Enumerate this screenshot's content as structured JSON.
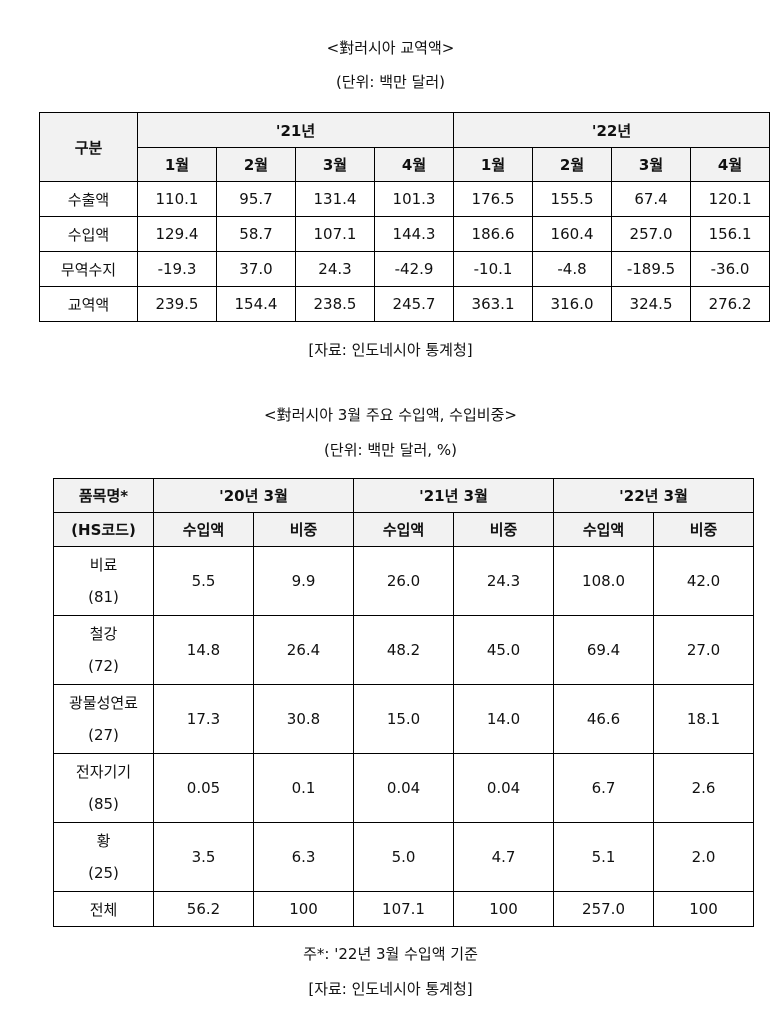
{
  "table1": {
    "title": "<對러시아 교역액>",
    "unit": "(단위: 백만 달러)",
    "corner_label": "구분",
    "year_groups": [
      "'21년",
      "'22년"
    ],
    "months": [
      "1월",
      "2월",
      "3월",
      "4월",
      "1월",
      "2월",
      "3월",
      "4월"
    ],
    "rows": [
      {
        "label": "수출액",
        "values": [
          "110.1",
          "95.7",
          "131.4",
          "101.3",
          "176.5",
          "155.5",
          "67.4",
          "120.1"
        ]
      },
      {
        "label": "수입액",
        "values": [
          "129.4",
          "58.7",
          "107.1",
          "144.3",
          "186.6",
          "160.4",
          "257.0",
          "156.1"
        ]
      },
      {
        "label": "무역수지",
        "values": [
          "-19.3",
          "37.0",
          "24.3",
          "-42.9",
          "-10.1",
          "-4.8",
          "-189.5",
          "-36.0"
        ]
      },
      {
        "label": "교역액",
        "values": [
          "239.5",
          "154.4",
          "238.5",
          "245.7",
          "363.1",
          "316.0",
          "324.5",
          "276.2"
        ]
      }
    ],
    "source": "[자료: 인도네시아 통계청]"
  },
  "table2": {
    "title": "<對러시아 3월 주요 수입액, 수입비중>",
    "unit": "(단위: 백만 달러, %)",
    "corner_label_line1": "품목명*",
    "corner_label_line2": "(HS코드)",
    "year_groups": [
      "'20년 3월",
      "'21년 3월",
      "'22년 3월"
    ],
    "sub_headers": [
      "수입액",
      "비중",
      "수입액",
      "비중",
      "수입액",
      "비중"
    ],
    "rows": [
      {
        "name": "비료",
        "code": "(81)",
        "values": [
          "5.5",
          "9.9",
          "26.0",
          "24.3",
          "108.0",
          "42.0"
        ]
      },
      {
        "name": "철강",
        "code": "(72)",
        "values": [
          "14.8",
          "26.4",
          "48.2",
          "45.0",
          "69.4",
          "27.0"
        ]
      },
      {
        "name": "광물성연료",
        "code": "(27)",
        "values": [
          "17.3",
          "30.8",
          "15.0",
          "14.0",
          "46.6",
          "18.1"
        ]
      },
      {
        "name": "전자기기",
        "code": "(85)",
        "values": [
          "0.05",
          "0.1",
          "0.04",
          "0.04",
          "6.7",
          "2.6"
        ]
      },
      {
        "name": "황",
        "code": "(25)",
        "values": [
          "3.5",
          "6.3",
          "5.0",
          "4.7",
          "5.1",
          "2.0"
        ]
      }
    ],
    "total_row": {
      "label": "전체",
      "values": [
        "56.2",
        "100",
        "107.1",
        "100",
        "257.0",
        "100"
      ]
    },
    "note": "주*: '22년 3월 수입액 기준",
    "source": "[자료: 인도네시아 통계청]"
  }
}
